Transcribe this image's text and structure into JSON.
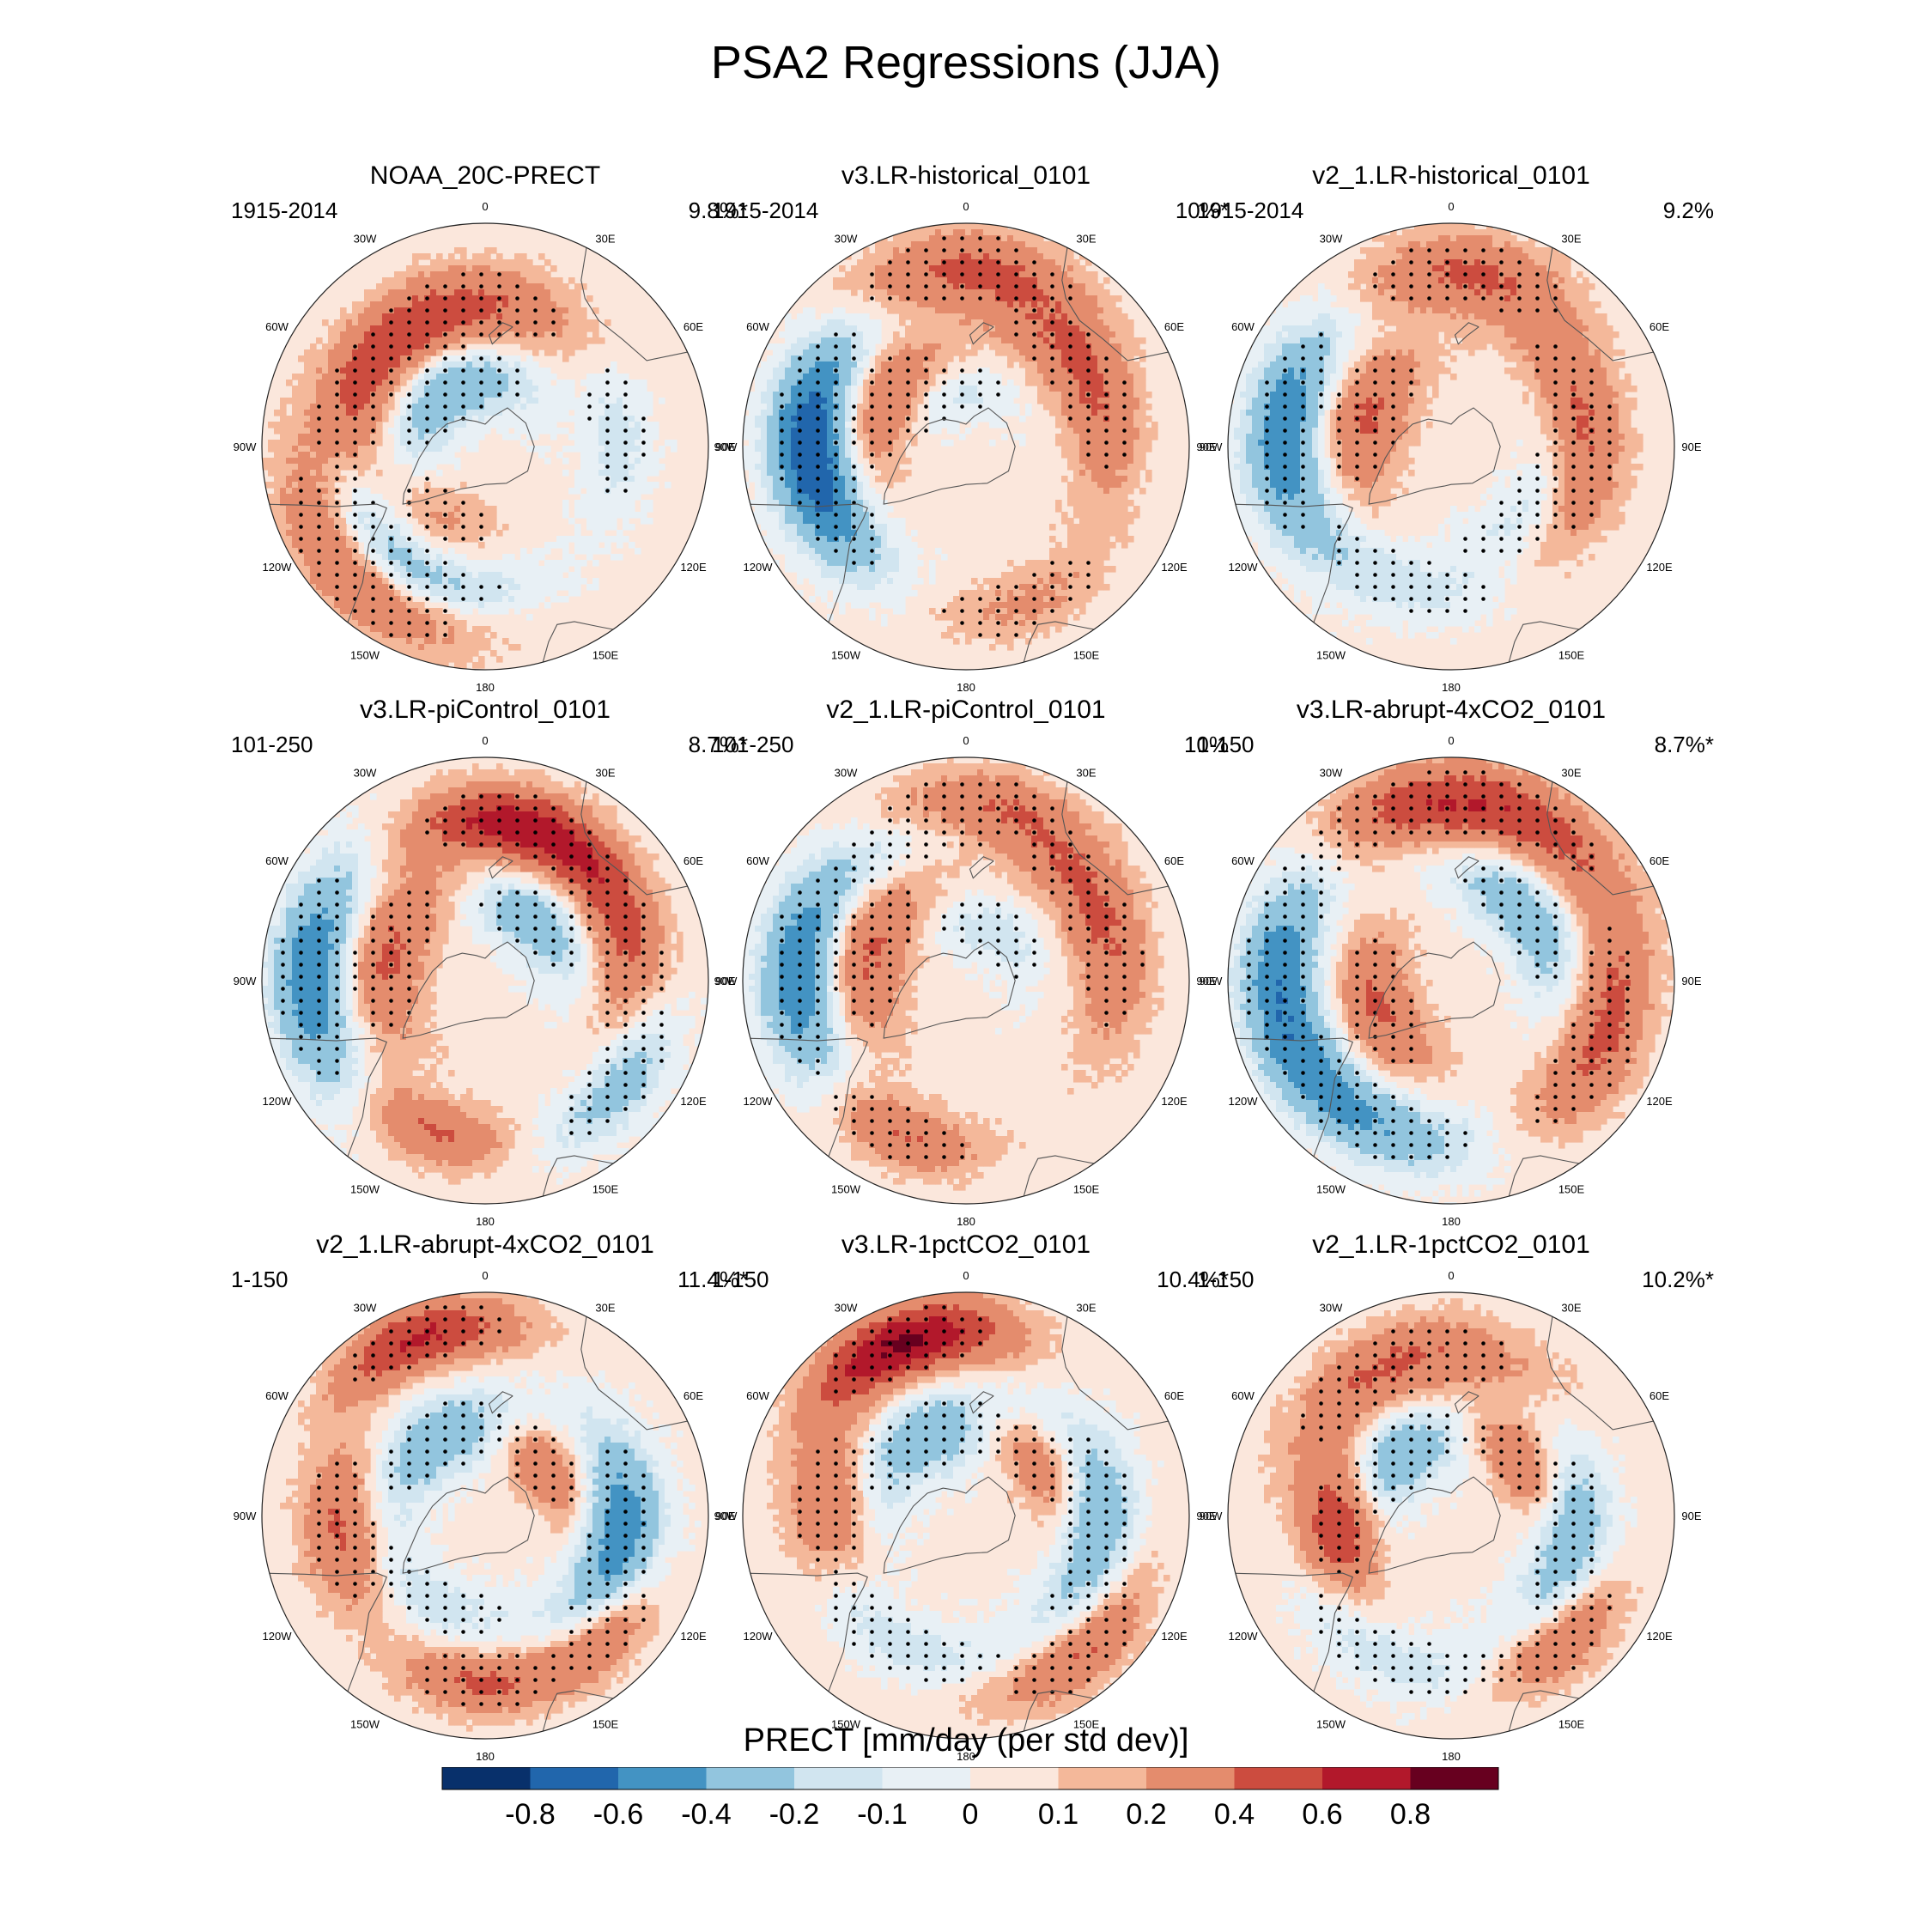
{
  "figure": {
    "title": "PSA2 Regressions (JJA)",
    "colorbar": {
      "label": "PRECT [mm/day (per std dev)]",
      "levels": [
        "-0.8",
        "-0.6",
        "-0.4",
        "-0.2",
        "-0.1",
        "0",
        "0.1",
        "0.2",
        "0.4",
        "0.6",
        "0.8"
      ],
      "colors": [
        "#08306b",
        "#2166ac",
        "#4393c3",
        "#92c5de",
        "#d1e5f0",
        "#e8f0f5",
        "#fbe7dc",
        "#f4b89a",
        "#e48c6d",
        "#cc4c3f",
        "#b2182b",
        "#67001f"
      ]
    },
    "lon_labels": [
      "0",
      "30E",
      "60E",
      "90E",
      "120E",
      "150E",
      "180",
      "150W",
      "120W",
      "90W",
      "60W",
      "30W"
    ]
  },
  "chart_data": {
    "type": "heatmap",
    "projection": "south-polar-stereographic",
    "variable": "PRECT regression onto PSA2 index",
    "units": "mm/day (per std dev)",
    "season": "JJA",
    "panels": [
      {
        "title": "NOAA_20C-PRECT",
        "period": "1915-2014",
        "pct": "9.8%*",
        "blobs": [
          {
            "lon": 315,
            "r": 0.82,
            "v": 0.4,
            "w": 0.5,
            "s": 0.12,
            "stip": true
          },
          {
            "lon": 320,
            "r": 0.65,
            "v": -0.4,
            "w": 0.65,
            "s": 0.1,
            "stip": true
          },
          {
            "lon": 248,
            "r": 0.62,
            "v": 0.4,
            "w": 0.55,
            "s": 0.12,
            "stip": true
          },
          {
            "lon": 190,
            "r": 0.62,
            "v": 0.4,
            "w": 0.6,
            "s": 0.13,
            "stip": true
          },
          {
            "lon": 210,
            "r": 0.3,
            "v": -0.4,
            "w": 0.9,
            "s": 0.12,
            "stip": true
          },
          {
            "lon": 95,
            "r": 0.6,
            "v": -0.2,
            "w": 0.4,
            "s": 0.1,
            "stip": true
          },
          {
            "lon": 330,
            "r": 0.35,
            "v": 0.2,
            "w": 0.5,
            "s": 0.1,
            "stip": true
          }
        ]
      },
      {
        "title": "v3.LR-historical_0101",
        "period": "1915-2014",
        "pct": "10%*",
        "blobs": [
          {
            "lon": 260,
            "r": 0.72,
            "v": -0.6,
            "w": 0.5,
            "s": 0.12,
            "stip": true
          },
          {
            "lon": 290,
            "r": 0.65,
            "v": -0.4,
            "w": 0.45,
            "s": 0.12,
            "stip": true
          },
          {
            "lon": 240,
            "r": 0.4,
            "v": 0.4,
            "w": 0.6,
            "s": 0.12,
            "stip": true
          },
          {
            "lon": 120,
            "r": 0.62,
            "v": 0.4,
            "w": 0.6,
            "s": 0.12,
            "stip": true
          },
          {
            "lon": 180,
            "r": 0.8,
            "v": 0.4,
            "w": 0.5,
            "s": 0.12,
            "stip": true
          },
          {
            "lon": 20,
            "r": 0.75,
            "v": 0.2,
            "w": 0.4,
            "s": 0.1,
            "stip": true
          },
          {
            "lon": 200,
            "r": 0.25,
            "v": -0.2,
            "w": 0.8,
            "s": 0.1,
            "stip": true
          }
        ]
      },
      {
        "title": "v2_1.LR-historical_0101",
        "period": "1915-2014",
        "pct": "9.2%",
        "blobs": [
          {
            "lon": 265,
            "r": 0.75,
            "v": -0.6,
            "w": 0.5,
            "s": 0.12,
            "stip": true
          },
          {
            "lon": 250,
            "r": 0.4,
            "v": 0.4,
            "w": 0.6,
            "s": 0.13,
            "stip": true
          },
          {
            "lon": 95,
            "r": 0.6,
            "v": 0.4,
            "w": 0.65,
            "s": 0.12,
            "stip": true
          },
          {
            "lon": 175,
            "r": 0.78,
            "v": 0.4,
            "w": 0.45,
            "s": 0.12,
            "stip": true
          },
          {
            "lon": 50,
            "r": 0.45,
            "v": -0.2,
            "w": 0.6,
            "s": 0.1,
            "stip": true
          },
          {
            "lon": 340,
            "r": 0.65,
            "v": -0.2,
            "w": 0.5,
            "s": 0.1,
            "stip": true
          }
        ]
      },
      {
        "title": "v3.LR-piControl_0101",
        "period": "101-250",
        "pct": "8.7%*",
        "blobs": [
          {
            "lon": 268,
            "r": 0.78,
            "v": -0.6,
            "w": 0.5,
            "s": 0.12,
            "stip": true
          },
          {
            "lon": 255,
            "r": 0.45,
            "v": 0.4,
            "w": 0.65,
            "s": 0.12,
            "stip": true
          },
          {
            "lon": 110,
            "r": 0.66,
            "v": 0.4,
            "w": 0.65,
            "s": 0.12,
            "stip": true
          },
          {
            "lon": 170,
            "r": 0.72,
            "v": 0.6,
            "w": 0.5,
            "s": 0.11,
            "stip": true
          },
          {
            "lon": 140,
            "r": 0.35,
            "v": -0.4,
            "w": 0.6,
            "s": 0.11,
            "stip": true
          },
          {
            "lon": 55,
            "r": 0.75,
            "v": -0.4,
            "w": 0.4,
            "s": 0.11,
            "stip": true
          },
          {
            "lon": 340,
            "r": 0.72,
            "v": 0.4,
            "w": 0.35,
            "s": 0.1,
            "stip": false
          }
        ]
      },
      {
        "title": "v2_1.LR-piControl_0101",
        "period": "101-250",
        "pct": "10%",
        "blobs": [
          {
            "lon": 268,
            "r": 0.75,
            "v": -0.6,
            "w": 0.5,
            "s": 0.12,
            "stip": true
          },
          {
            "lon": 255,
            "r": 0.45,
            "v": 0.4,
            "w": 0.6,
            "s": 0.13,
            "stip": true
          },
          {
            "lon": 115,
            "r": 0.66,
            "v": 0.4,
            "w": 0.6,
            "s": 0.12,
            "stip": true
          },
          {
            "lon": 175,
            "r": 0.78,
            "v": 0.4,
            "w": 0.45,
            "s": 0.11,
            "stip": true
          },
          {
            "lon": 150,
            "r": 0.25,
            "v": -0.2,
            "w": 0.8,
            "s": 0.1,
            "stip": true
          },
          {
            "lon": 335,
            "r": 0.75,
            "v": 0.4,
            "w": 0.35,
            "s": 0.1,
            "stip": true
          },
          {
            "lon": 200,
            "r": 0.7,
            "v": -0.2,
            "w": 0.5,
            "s": 0.1,
            "stip": true
          }
        ]
      },
      {
        "title": "v3.LR-abrupt-4xCO2_0101",
        "period": "1-150",
        "pct": "8.7%*",
        "blobs": [
          {
            "lon": 262,
            "r": 0.78,
            "v": -0.6,
            "w": 0.6,
            "s": 0.12,
            "stip": true
          },
          {
            "lon": 325,
            "r": 0.72,
            "v": -0.4,
            "w": 0.6,
            "s": 0.12,
            "stip": true
          },
          {
            "lon": 180,
            "r": 0.8,
            "v": 0.6,
            "w": 0.75,
            "s": 0.12,
            "stip": true
          },
          {
            "lon": 70,
            "r": 0.72,
            "v": 0.4,
            "w": 0.55,
            "s": 0.12,
            "stip": true
          },
          {
            "lon": 290,
            "r": 0.35,
            "v": 0.4,
            "w": 0.7,
            "s": 0.12,
            "stip": true
          },
          {
            "lon": 130,
            "r": 0.45,
            "v": -0.4,
            "w": 0.6,
            "s": 0.11,
            "stip": true
          }
        ]
      },
      {
        "title": "v2_1.LR-abrupt-4xCO2_0101",
        "period": "1-150",
        "pct": "11.4%*",
        "blobs": [
          {
            "lon": 200,
            "r": 0.85,
            "v": 0.6,
            "w": 0.35,
            "s": 0.1,
            "stip": true
          },
          {
            "lon": 275,
            "r": 0.65,
            "v": 0.4,
            "w": 0.4,
            "s": 0.12,
            "stip": true
          },
          {
            "lon": 80,
            "r": 0.62,
            "v": -0.6,
            "w": 0.55,
            "s": 0.12,
            "stip": true
          },
          {
            "lon": 0,
            "r": 0.75,
            "v": 0.4,
            "w": 0.35,
            "s": 0.1,
            "stip": true
          },
          {
            "lon": 45,
            "r": 0.75,
            "v": 0.4,
            "w": 0.3,
            "s": 0.1,
            "stip": true
          },
          {
            "lon": 210,
            "r": 0.4,
            "v": -0.4,
            "w": 0.7,
            "s": 0.12,
            "stip": true
          },
          {
            "lon": 130,
            "r": 0.35,
            "v": 0.4,
            "w": 0.5,
            "s": 0.1,
            "stip": true
          },
          {
            "lon": 330,
            "r": 0.45,
            "v": -0.2,
            "w": 0.6,
            "s": 0.1,
            "stip": true
          }
        ]
      },
      {
        "title": "v3.LR-1pctCO2_0101",
        "period": "1-150",
        "pct": "10.4%*",
        "blobs": [
          {
            "lon": 200,
            "r": 0.82,
            "v": 0.8,
            "w": 0.4,
            "s": 0.11,
            "stip": true
          },
          {
            "lon": 265,
            "r": 0.62,
            "v": 0.4,
            "w": 0.4,
            "s": 0.12,
            "stip": true
          },
          {
            "lon": 85,
            "r": 0.6,
            "v": -0.4,
            "w": 0.6,
            "s": 0.12,
            "stip": true
          },
          {
            "lon": 40,
            "r": 0.8,
            "v": 0.4,
            "w": 0.4,
            "s": 0.1,
            "stip": true
          },
          {
            "lon": 205,
            "r": 0.4,
            "v": -0.4,
            "w": 0.75,
            "s": 0.13,
            "stip": true
          },
          {
            "lon": 130,
            "r": 0.4,
            "v": 0.4,
            "w": 0.5,
            "s": 0.1,
            "stip": true
          },
          {
            "lon": 330,
            "r": 0.65,
            "v": -0.2,
            "w": 0.6,
            "s": 0.1,
            "stip": true
          }
        ]
      },
      {
        "title": "v2_1.LR-1pctCO2_0101",
        "period": "1-150",
        "pct": "10.2%*",
        "blobs": [
          {
            "lon": 200,
            "r": 0.72,
            "v": 0.4,
            "w": 0.6,
            "s": 0.12,
            "stip": true
          },
          {
            "lon": 275,
            "r": 0.5,
            "v": 0.6,
            "w": 0.4,
            "s": 0.12,
            "stip": true
          },
          {
            "lon": 80,
            "r": 0.55,
            "v": -0.4,
            "w": 0.55,
            "s": 0.12,
            "stip": true
          },
          {
            "lon": 40,
            "r": 0.75,
            "v": 0.4,
            "w": 0.35,
            "s": 0.1,
            "stip": true
          },
          {
            "lon": 220,
            "r": 0.35,
            "v": -0.4,
            "w": 0.7,
            "s": 0.12,
            "stip": true
          },
          {
            "lon": 130,
            "r": 0.4,
            "v": 0.4,
            "w": 0.5,
            "s": 0.1,
            "stip": true
          },
          {
            "lon": 340,
            "r": 0.7,
            "v": -0.2,
            "w": 0.6,
            "s": 0.1,
            "stip": true
          }
        ]
      }
    ]
  }
}
